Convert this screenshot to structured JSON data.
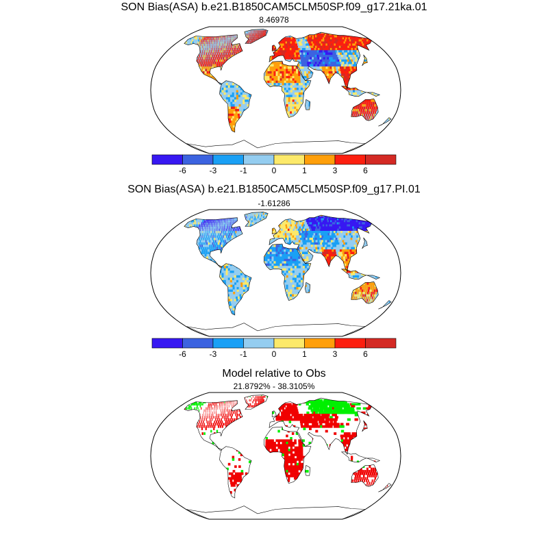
{
  "colors": {
    "bin_colors": [
      "#3718f2",
      "#3c63e0",
      "#1aa0f5",
      "#94cdf0",
      "#fce96a",
      "#ff9f0a",
      "#fc1f0f",
      "#d42a24"
    ],
    "better": "#00f000",
    "worse": "#f00000",
    "coast": "#000000"
  },
  "panels": {
    "p1": {
      "title": "SON Bias(ASA) b.e21.B1850CAM5CLM50SP.f09_g17.21ka.01",
      "subtitle": "8.46978"
    },
    "p2": {
      "title": "SON Bias(ASA) b.e21.B1850CAM5CLM50SP.f09_g17.PI.01",
      "subtitle": "-1.61286"
    },
    "p3": {
      "title": "Model relative to Obs",
      "subtitle": "21.8792% - 38.3105%"
    }
  },
  "colorbar": {
    "tick_labels": [
      "-6",
      "-3",
      "-1",
      "0",
      "1",
      "3",
      "6"
    ]
  },
  "chart_data": [
    {
      "type": "heatmap",
      "projection": "Robinson",
      "title": "SON Bias(ASA) b.e21.B1850CAM5CLM50SP.f09_g17.21ka.01",
      "subtitle": "8.46978",
      "levels": [
        -6,
        -3,
        -1,
        0,
        1,
        3,
        6
      ],
      "regions": [
        {
          "name": "North America",
          "lon": [
            -140,
            -55
          ],
          "lat": [
            30,
            75
          ],
          "bin": 6
        },
        {
          "name": "Greenland",
          "lon": [
            -60,
            -20
          ],
          "lat": [
            60,
            82
          ],
          "bin": 7
        },
        {
          "name": "Central America",
          "lon": [
            -110,
            -80
          ],
          "lat": [
            10,
            30
          ],
          "bin": 5
        },
        {
          "name": "South America north",
          "lon": [
            -80,
            -35
          ],
          "lat": [
            -20,
            10
          ],
          "bin": 3
        },
        {
          "name": "South America south",
          "lon": [
            -75,
            -55
          ],
          "lat": [
            -55,
            -20
          ],
          "bin": 5
        },
        {
          "name": "Europe",
          "lon": [
            -10,
            40
          ],
          "lat": [
            40,
            70
          ],
          "bin": 6
        },
        {
          "name": "Siberia",
          "lon": [
            60,
            180
          ],
          "lat": [
            50,
            75
          ],
          "bin": 6
        },
        {
          "name": "Central Asia",
          "lon": [
            40,
            100
          ],
          "lat": [
            30,
            50
          ],
          "bin": 1
        },
        {
          "name": "North Africa",
          "lon": [
            -15,
            35
          ],
          "lat": [
            10,
            35
          ],
          "bin": 5
        },
        {
          "name": "Central Africa",
          "lon": [
            10,
            40
          ],
          "lat": [
            -10,
            10
          ],
          "bin": 3
        },
        {
          "name": "Southern Africa",
          "lon": [
            15,
            35
          ],
          "lat": [
            -35,
            -10
          ],
          "bin": 4
        },
        {
          "name": "India",
          "lon": [
            70,
            90
          ],
          "lat": [
            8,
            30
          ],
          "bin": 5
        },
        {
          "name": "Southeast Asia",
          "lon": [
            95,
            125
          ],
          "lat": [
            0,
            30
          ],
          "bin": 6
        },
        {
          "name": "Australia",
          "lon": [
            115,
            150
          ],
          "lat": [
            -40,
            -12
          ],
          "bin": 6
        }
      ]
    },
    {
      "type": "heatmap",
      "projection": "Robinson",
      "title": "SON Bias(ASA) b.e21.B1850CAM5CLM50SP.f09_g17.PI.01",
      "subtitle": "-1.61286",
      "levels": [
        -6,
        -3,
        -1,
        0,
        1,
        3,
        6
      ],
      "regions": [
        {
          "name": "Canada",
          "lon": [
            -140,
            -60
          ],
          "lat": [
            55,
            75
          ],
          "bin": 0
        },
        {
          "name": "USA",
          "lon": [
            -125,
            -70
          ],
          "lat": [
            25,
            55
          ],
          "bin": 2
        },
        {
          "name": "Central America",
          "lon": [
            -110,
            -80
          ],
          "lat": [
            10,
            25
          ],
          "bin": 3
        },
        {
          "name": "South America north",
          "lon": [
            -80,
            -35
          ],
          "lat": [
            -20,
            10
          ],
          "bin": 3
        },
        {
          "name": "South America south",
          "lon": [
            -75,
            -55
          ],
          "lat": [
            -55,
            -20
          ],
          "bin": 3
        },
        {
          "name": "Europe",
          "lon": [
            -10,
            40
          ],
          "lat": [
            45,
            70
          ],
          "bin": 4
        },
        {
          "name": "Siberia",
          "lon": [
            60,
            180
          ],
          "lat": [
            55,
            75
          ],
          "bin": 0
        },
        {
          "name": "Central Asia",
          "lon": [
            40,
            100
          ],
          "lat": [
            35,
            55
          ],
          "bin": 2
        },
        {
          "name": "North Africa",
          "lon": [
            -15,
            35
          ],
          "lat": [
            10,
            35
          ],
          "bin": 2
        },
        {
          "name": "Central Africa",
          "lon": [
            10,
            40
          ],
          "lat": [
            -10,
            10
          ],
          "bin": 3
        },
        {
          "name": "Southern Africa",
          "lon": [
            15,
            35
          ],
          "lat": [
            -35,
            -10
          ],
          "bin": 3
        },
        {
          "name": "India",
          "lon": [
            70,
            90
          ],
          "lat": [
            8,
            30
          ],
          "bin": 6
        },
        {
          "name": "Southeast Asia",
          "lon": [
            95,
            125
          ],
          "lat": [
            0,
            30
          ],
          "bin": 5
        },
        {
          "name": "Australia",
          "lon": [
            115,
            150
          ],
          "lat": [
            -40,
            -12
          ],
          "bin": 5
        }
      ]
    },
    {
      "type": "heatmap",
      "projection": "Robinson",
      "title": "Model relative to Obs",
      "subtitle": "21.8792% - 38.3105%",
      "categories": [
        "better",
        "worse"
      ],
      "regions": [
        {
          "name": "North America",
          "lon": [
            -130,
            -55
          ],
          "lat": [
            35,
            75
          ],
          "cat": "worse"
        },
        {
          "name": "Alaska",
          "lon": [
            -165,
            -140
          ],
          "lat": [
            60,
            72
          ],
          "cat": "better"
        },
        {
          "name": "Greenland",
          "lon": [
            -55,
            -25
          ],
          "lat": [
            62,
            80
          ],
          "cat": "worse"
        },
        {
          "name": "Europe",
          "lon": [
            0,
            40
          ],
          "lat": [
            45,
            70
          ],
          "cat": "worse"
        },
        {
          "name": "Siberia",
          "lon": [
            60,
            140
          ],
          "lat": [
            55,
            75
          ],
          "cat": "better"
        },
        {
          "name": "Central Asia",
          "lon": [
            40,
            100
          ],
          "lat": [
            35,
            55
          ],
          "cat": "worse"
        },
        {
          "name": "Africa",
          "lon": [
            -15,
            40
          ],
          "lat": [
            -30,
            20
          ],
          "cat": "worse"
        },
        {
          "name": "South America",
          "lon": [
            -70,
            -50
          ],
          "lat": [
            -40,
            -20
          ],
          "cat": "worse"
        },
        {
          "name": "Southeast Asia",
          "lon": [
            95,
            125
          ],
          "lat": [
            5,
            30
          ],
          "cat": "worse"
        },
        {
          "name": "Australia",
          "lon": [
            115,
            150
          ],
          "lat": [
            -40,
            -15
          ],
          "cat": "worse"
        }
      ]
    }
  ]
}
